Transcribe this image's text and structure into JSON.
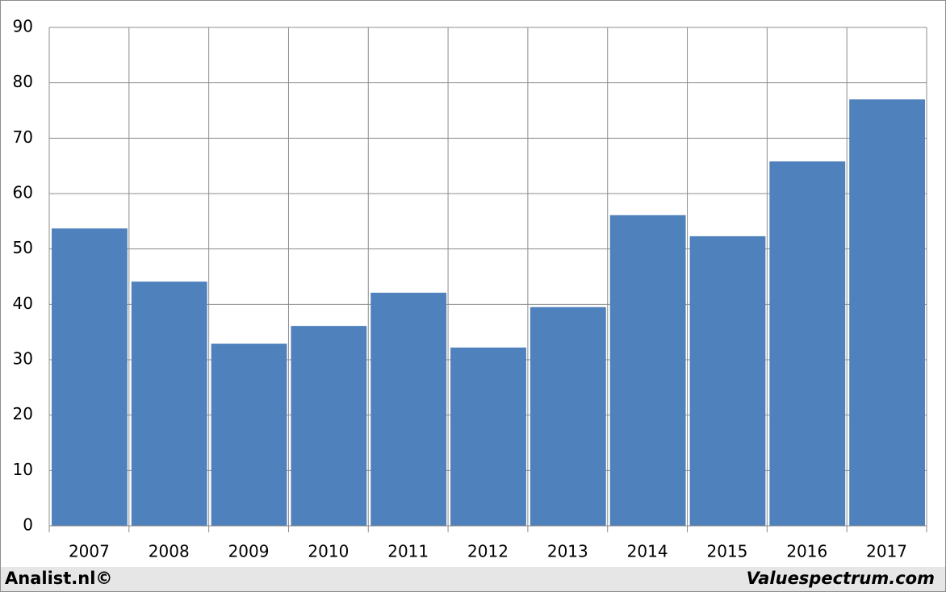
{
  "chart_data": {
    "type": "bar",
    "categories": [
      "2007",
      "2008",
      "2009",
      "2010",
      "2011",
      "2012",
      "2013",
      "2014",
      "2015",
      "2016",
      "2017"
    ],
    "values": [
      53.7,
      44.1,
      32.9,
      36.1,
      42.1,
      32.2,
      39.5,
      56.1,
      52.3,
      65.8,
      77.0
    ],
    "color": "#4f81bd",
    "ylim": [
      0,
      90
    ],
    "yticks": [
      0,
      10,
      20,
      30,
      40,
      50,
      60,
      70,
      80,
      90
    ],
    "grid": true
  },
  "footer": {
    "left": "Analist.nl©",
    "right": "Valuespectrum.com"
  }
}
